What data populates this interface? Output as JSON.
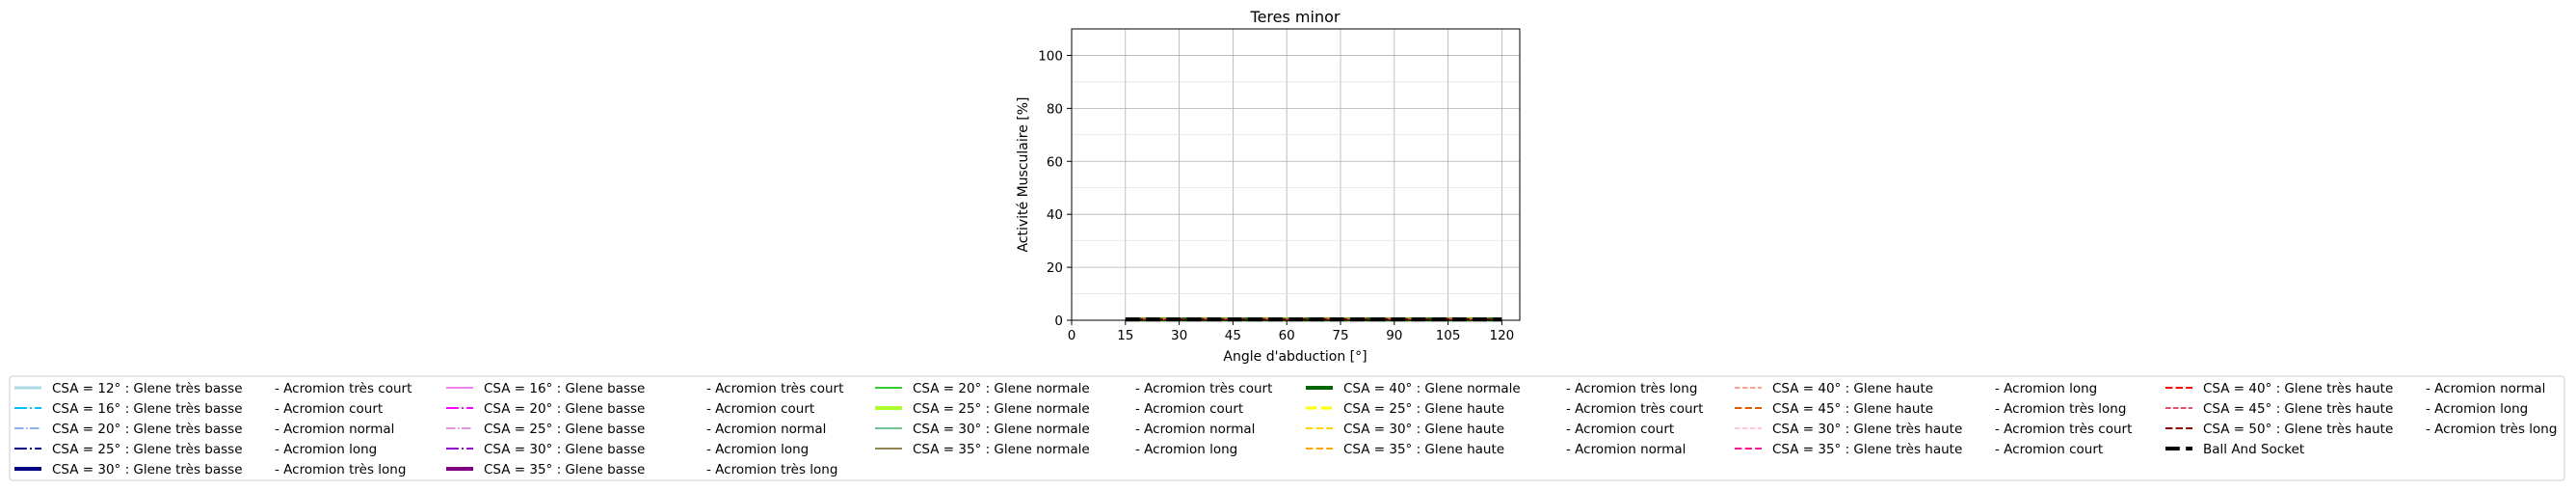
{
  "chart_data": {
    "type": "line",
    "title": "Teres minor",
    "xlabel": "Angle d'abduction [°]",
    "ylabel": "Activité Musculaire [%]",
    "xlim": [
      0,
      125
    ],
    "ylim": [
      0,
      110
    ],
    "xticks": [
      "0",
      "15",
      "30",
      "45",
      "60",
      "75",
      "90",
      "105",
      "120"
    ],
    "yticks": [
      "0",
      "20",
      "40",
      "60",
      "80",
      "100"
    ],
    "grid": true,
    "legend_placement": "bottom",
    "x": [
      15,
      30,
      45,
      60,
      75,
      90,
      105,
      120
    ],
    "series": [
      {
        "name": "CSA = 12° : Glene très basse",
        "suffix": "-  Acromion très court",
        "color": "#add8e6",
        "dash": "solid",
        "width": 3,
        "values": [
          0.3,
          0.3,
          0.3,
          0.3,
          0.3,
          0.3,
          0.3,
          0.3
        ]
      },
      {
        "name": "CSA = 16° : Glene très basse",
        "suffix": "-  Acromion court",
        "color": "#00bfff",
        "dash": "dashdot",
        "width": 2,
        "values": [
          0.3,
          0.3,
          0.3,
          0.3,
          0.3,
          0.3,
          0.3,
          0.3
        ]
      },
      {
        "name": "CSA = 20° : Glene très basse",
        "suffix": "-  Acromion normal",
        "color": "#6495ed",
        "dash": "dashdot",
        "width": 1.5,
        "values": [
          0.3,
          0.3,
          0.3,
          0.3,
          0.3,
          0.3,
          0.3,
          0.3
        ]
      },
      {
        "name": "CSA = 25° : Glene très basse",
        "suffix": "-  Acromion long",
        "color": "#00008b",
        "dash": "dashdot",
        "width": 2,
        "values": [
          0.3,
          0.3,
          0.3,
          0.3,
          0.3,
          0.3,
          0.3,
          0.3
        ]
      },
      {
        "name": "CSA = 30° : Glene très basse",
        "suffix": "-  Acromion très long",
        "color": "#000080",
        "dash": "solid",
        "width": 4,
        "values": [
          0.3,
          0.3,
          0.3,
          0.3,
          0.3,
          0.3,
          0.3,
          0.3
        ]
      },
      {
        "name": "CSA = 16° : Glene basse",
        "suffix": "-  Acromion très court",
        "color": "#ee82ee",
        "dash": "solid",
        "width": 2,
        "values": [
          0.3,
          0.3,
          0.3,
          0.3,
          0.3,
          0.3,
          0.3,
          0.3
        ]
      },
      {
        "name": "CSA = 20° : Glene basse",
        "suffix": "-  Acromion court",
        "color": "#ff00ff",
        "dash": "dashdot",
        "width": 2,
        "values": [
          0.3,
          0.3,
          0.3,
          0.3,
          0.3,
          0.3,
          0.3,
          0.3
        ]
      },
      {
        "name": "CSA = 25° : Glene basse",
        "suffix": "-  Acromion normal",
        "color": "#da70d6",
        "dash": "dashdot",
        "width": 1.5,
        "values": [
          0.3,
          0.3,
          0.3,
          0.3,
          0.3,
          0.3,
          0.3,
          0.3
        ]
      },
      {
        "name": "CSA = 30° : Glene basse",
        "suffix": "-  Acromion long",
        "color": "#9400d3",
        "dash": "dashdot",
        "width": 2,
        "values": [
          0.3,
          0.3,
          0.3,
          0.3,
          0.3,
          0.3,
          0.3,
          0.3
        ]
      },
      {
        "name": "CSA = 35° : Glene basse",
        "suffix": "-  Acromion très long",
        "color": "#800080",
        "dash": "solid",
        "width": 4,
        "values": [
          0.3,
          0.3,
          0.3,
          0.3,
          0.3,
          0.3,
          0.3,
          0.3
        ]
      },
      {
        "name": "CSA = 20° : Glene normale",
        "suffix": "-  Acromion très court",
        "color": "#32cd32",
        "dash": "solid",
        "width": 2,
        "values": [
          0.3,
          0.3,
          0.3,
          0.3,
          0.3,
          0.3,
          0.3,
          0.3
        ]
      },
      {
        "name": "CSA = 25° : Glene normale",
        "suffix": "-  Acromion court",
        "color": "#adff2f",
        "dash": "solid",
        "width": 4,
        "values": [
          0.3,
          0.3,
          0.3,
          0.3,
          0.3,
          0.3,
          0.3,
          0.3
        ]
      },
      {
        "name": "CSA = 30° : Glene normale",
        "suffix": "-  Acromion normal",
        "color": "#3cb371",
        "dash": "solid",
        "width": 1.5,
        "values": [
          0.3,
          0.3,
          0.3,
          0.3,
          0.3,
          0.3,
          0.3,
          0.3
        ]
      },
      {
        "name": "CSA = 35° : Glene normale",
        "suffix": "-  Acromion long",
        "color": "#6b5d1a",
        "dash": "solid",
        "width": 1.5,
        "values": [
          0.3,
          0.3,
          0.3,
          0.3,
          0.3,
          0.3,
          0.3,
          0.3
        ]
      },
      {
        "name": "CSA = 40° : Glene normale",
        "suffix": "-  Acromion très long",
        "color": "#006400",
        "dash": "solid",
        "width": 4,
        "values": [
          0.3,
          0.3,
          0.3,
          0.3,
          0.3,
          0.3,
          0.3,
          0.3
        ]
      },
      {
        "name": "CSA = 25° : Glene haute",
        "suffix": "-  Acromion très court",
        "color": "#ffff00",
        "dash": "dashed",
        "width": 3,
        "values": [
          0.3,
          0.3,
          0.3,
          0.3,
          0.3,
          0.3,
          0.3,
          0.3
        ]
      },
      {
        "name": "CSA = 30° : Glene haute",
        "suffix": "-  Acromion court",
        "color": "#ffd700",
        "dash": "dashed",
        "width": 2,
        "values": [
          0.3,
          0.3,
          0.3,
          0.3,
          0.3,
          0.3,
          0.3,
          0.3
        ]
      },
      {
        "name": "CSA = 35° : Glene haute",
        "suffix": "-  Acromion normal",
        "color": "#ffa500",
        "dash": "dashed",
        "width": 2,
        "values": [
          0.3,
          0.3,
          0.3,
          0.3,
          0.3,
          0.3,
          0.3,
          0.3
        ]
      },
      {
        "name": "CSA = 40° : Glene haute",
        "suffix": "-  Acromion long",
        "color": "#fa8072",
        "dash": "dashed",
        "width": 1.5,
        "values": [
          0.3,
          0.3,
          0.3,
          0.3,
          0.3,
          0.3,
          0.3,
          0.3
        ]
      },
      {
        "name": "CSA = 45° : Glene haute",
        "suffix": "-  Acromion très long",
        "color": "#e05a00",
        "dash": "dashed",
        "width": 2,
        "values": [
          0.3,
          0.3,
          0.3,
          0.3,
          0.3,
          0.3,
          0.3,
          0.3
        ]
      },
      {
        "name": "CSA = 30° : Glene très haute",
        "suffix": "-  Acromion très court",
        "color": "#ffb6c1",
        "dash": "dashed",
        "width": 1.5,
        "values": [
          0.3,
          0.3,
          0.3,
          0.3,
          0.3,
          0.3,
          0.3,
          0.3
        ]
      },
      {
        "name": "CSA = 35° : Glene très haute",
        "suffix": "-  Acromion court",
        "color": "#ff1493",
        "dash": "dashed",
        "width": 2,
        "values": [
          0.3,
          0.3,
          0.3,
          0.3,
          0.3,
          0.3,
          0.3,
          0.3
        ]
      },
      {
        "name": "CSA = 40° : Glene très haute",
        "suffix": "-  Acromion normal",
        "color": "#ff0000",
        "dash": "dashed",
        "width": 2,
        "values": [
          0.3,
          0.3,
          0.3,
          0.3,
          0.3,
          0.3,
          0.3,
          0.3
        ]
      },
      {
        "name": "CSA = 45° : Glene très haute",
        "suffix": "-  Acromion long",
        "color": "#dc143c",
        "dash": "dashed",
        "width": 1.5,
        "values": [
          0.3,
          0.3,
          0.3,
          0.3,
          0.3,
          0.3,
          0.3,
          0.3
        ]
      },
      {
        "name": "CSA = 50° : Glene très haute",
        "suffix": "-  Acromion très long",
        "color": "#8b0000",
        "dash": "dashed",
        "width": 2,
        "values": [
          0.3,
          0.3,
          0.3,
          0.3,
          0.3,
          0.3,
          0.3,
          0.3
        ]
      },
      {
        "name": "Ball And Socket",
        "suffix": "",
        "color": "#000000",
        "dash": "dashed",
        "width": 4,
        "values": [
          0.3,
          0.3,
          0.3,
          0.3,
          0.3,
          0.3,
          0.3,
          0.3
        ]
      }
    ],
    "legend_columns": [
      [
        0,
        1,
        2,
        3,
        4
      ],
      [
        5,
        6,
        7,
        8,
        9
      ],
      [
        10,
        11,
        12,
        13
      ],
      [
        14,
        15,
        16,
        17
      ],
      [
        18,
        19,
        20,
        21
      ],
      [
        22,
        23,
        24,
        25
      ]
    ]
  }
}
